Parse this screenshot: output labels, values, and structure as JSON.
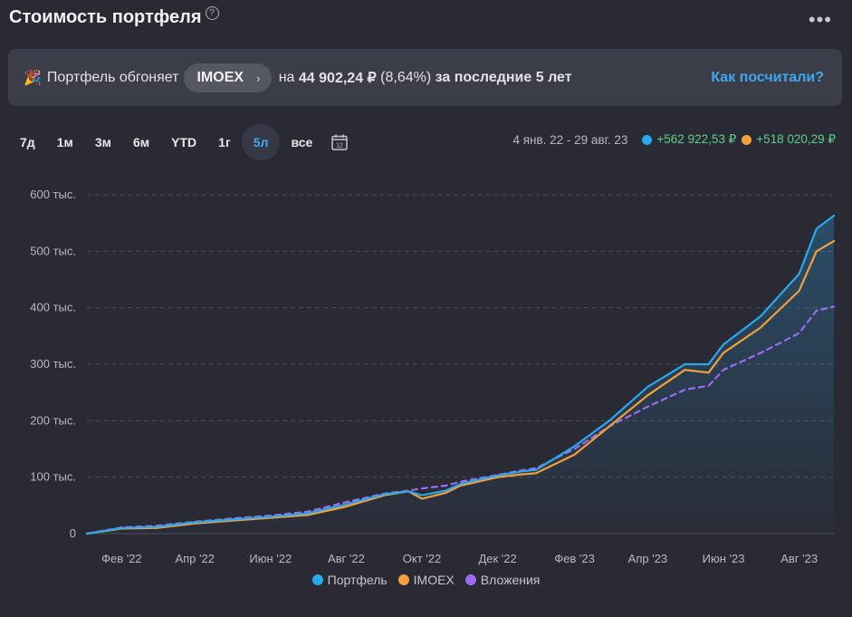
{
  "header": {
    "title": "Стоимость портфеля",
    "help": "?",
    "more": "•••"
  },
  "banner": {
    "icon": "party-popper-icon",
    "prefix": "Портфель обгоняет",
    "index": "IMOEX",
    "by": "на",
    "amount": "44 902,24 ₽",
    "percent": "(8,64%)",
    "suffix": "за последние 5 лет",
    "link": "Как посчитали?"
  },
  "periods": [
    "7д",
    "1м",
    "3м",
    "6м",
    "YTD",
    "1г",
    "5л",
    "все"
  ],
  "active_period": "5л",
  "summary": {
    "range": "4 янв. 22 - 29 авг. 23",
    "portfolio": "+562 922,53 ₽",
    "imoex": "+518 020,29 ₽"
  },
  "colors": {
    "portfolio": "#29a8ec",
    "imoex": "#f2a03b",
    "investments": "#9a6cf0",
    "background": "#2a2a34",
    "accent": "#3fa9ef",
    "positive": "#5fd08a"
  },
  "chart_data": {
    "type": "line",
    "x_ticks": [
      "Фев '22",
      "Апр '22",
      "Июн '22",
      "Авг '22",
      "Окт '22",
      "Дек '22",
      "Фев '23",
      "Апр '23",
      "Июн '23",
      "Авг '23"
    ],
    "y_ticks": [
      "0",
      "100 тыс.",
      "200 тыс.",
      "300 тыс.",
      "400 тыс.",
      "500 тыс.",
      "600 тыс."
    ],
    "ylim": [
      0,
      600000
    ],
    "xlim": [
      "2022-01-04",
      "2023-08-29"
    ],
    "grid": true,
    "legend_position": "bottom",
    "x": [
      "2022-01-04",
      "2022-02-01",
      "2022-03-01",
      "2022-04-01",
      "2022-05-01",
      "2022-06-01",
      "2022-07-01",
      "2022-08-01",
      "2022-09-01",
      "2022-09-20",
      "2022-10-01",
      "2022-10-20",
      "2022-11-01",
      "2022-12-01",
      "2022-12-20",
      "2023-01-01",
      "2023-02-01",
      "2023-03-01",
      "2023-04-01",
      "2023-05-01",
      "2023-05-20",
      "2023-06-01",
      "2023-07-01",
      "2023-08-01",
      "2023-08-15",
      "2023-08-29"
    ],
    "series": [
      {
        "name": "Портфель",
        "values": [
          0,
          10000,
          12000,
          20000,
          25000,
          30000,
          36000,
          52000,
          70000,
          75000,
          68000,
          76000,
          88000,
          103000,
          110000,
          113000,
          155000,
          200000,
          260000,
          300000,
          300000,
          335000,
          385000,
          460000,
          540000,
          562922
        ]
      },
      {
        "name": "IMOEX",
        "values": [
          0,
          9000,
          10000,
          18000,
          23000,
          28000,
          33000,
          48000,
          68000,
          75000,
          62000,
          72000,
          85000,
          100000,
          105000,
          107000,
          140000,
          190000,
          245000,
          290000,
          285000,
          320000,
          365000,
          430000,
          500000,
          518020
        ]
      },
      {
        "name": "Вложения",
        "values": [
          0,
          11000,
          14000,
          21000,
          27000,
          32000,
          39000,
          56000,
          71000,
          76000,
          80000,
          85000,
          92000,
          104000,
          112000,
          116000,
          150000,
          190000,
          225000,
          255000,
          262000,
          290000,
          320000,
          355000,
          395000,
          402000
        ]
      }
    ]
  }
}
